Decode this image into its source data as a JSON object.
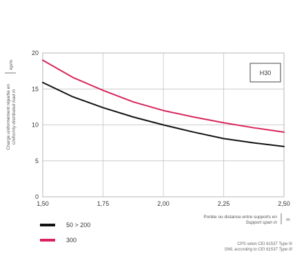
{
  "chart_data": {
    "type": "line",
    "x": [
      1.5,
      1.625,
      1.75,
      1.875,
      2.0,
      2.125,
      2.25,
      2.375,
      2.5
    ],
    "xlim": [
      1.5,
      2.5
    ],
    "ylim": [
      0,
      20
    ],
    "x_ticks": [
      1.5,
      1.75,
      2.0,
      2.25,
      2.5
    ],
    "x_tick_labels": [
      "1,50",
      "1,75",
      "2,00",
      "2,25",
      "2,50"
    ],
    "y_ticks": [
      0,
      5,
      10,
      15,
      20
    ],
    "y_tick_labels": [
      "0",
      "5",
      "10",
      "15",
      "20"
    ],
    "xlabel_line1": "Portée ou distance entre supports en",
    "xlabel_line2": "Support span in",
    "xlabel_unit": "m",
    "ylabel_line1": "Charge uniformément répartie en",
    "ylabel_line2": "Uniformly distributed load in",
    "ylabel_unit": "kp/m",
    "grid": true,
    "legend_position": "bottom-left",
    "annotation_box": "H30",
    "series": [
      {
        "name": "50 > 200",
        "color": "#111111",
        "values": [
          15.9,
          13.9,
          12.4,
          11.1,
          10.0,
          9.0,
          8.1,
          7.5,
          7.0
        ]
      },
      {
        "name": "300",
        "color": "#d8245a",
        "values": [
          19.0,
          16.6,
          14.8,
          13.2,
          12.0,
          11.1,
          10.3,
          9.6,
          9.0
        ]
      }
    ],
    "footnote_line1": "CPS selon CEI 61537 Type III",
    "footnote_line2": "SWL according to CEI 61537 Type III"
  }
}
